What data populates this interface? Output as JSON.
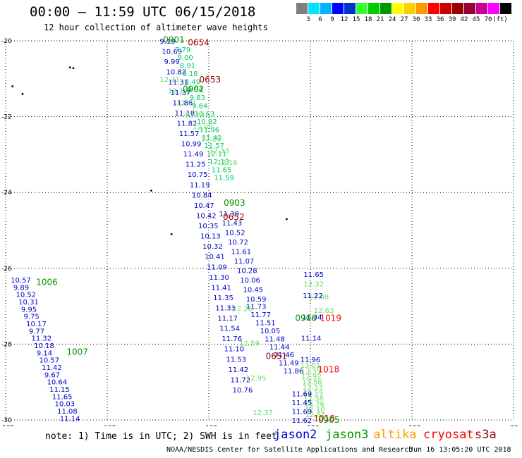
{
  "title": "00:00 – 11:59 UTC 06/15/2018",
  "subtitle": "12 hour collection of altimeter wave heights",
  "scale": {
    "colors": [
      "#7f7f7f",
      "#00e5ff",
      "#00b4ff",
      "#0000ff",
      "#0033cc",
      "#33ff33",
      "#00cc00",
      "#009900",
      "#ffff00",
      "#ffcc00",
      "#ff9900",
      "#ff0000",
      "#cc0000",
      "#990000",
      "#990033",
      "#cc0099",
      "#ff00ff",
      "#000000"
    ],
    "labels": [
      "3",
      "6",
      "9",
      "12",
      "15",
      "18",
      "21",
      "24",
      "27",
      "30",
      "33",
      "36",
      "39",
      "42",
      "45",
      "70",
      "(ft)"
    ]
  },
  "axes": {
    "lat_labels": [
      "-20",
      "-22",
      "-24",
      "-26",
      "-28",
      "-30"
    ],
    "lon_labels": [
      "-135",
      "-132",
      "-129",
      "-126",
      "-123",
      "-12"
    ]
  },
  "satellites": {
    "jason2": "#0000cc",
    "jason3": "#009900",
    "altika": "#ff9900",
    "cryosat": "#ff0000",
    "s3a": "#990000"
  },
  "time_labels": [
    {
      "text": "0901",
      "sat": "jason3",
      "lon": -130.35,
      "lat": -19.95
    },
    {
      "text": "0654",
      "sat": "s3a",
      "lon": -129.62,
      "lat": -20.03
    },
    {
      "text": "0653",
      "sat": "s3a",
      "lon": -129.28,
      "lat": -21.0
    },
    {
      "text": "0902",
      "sat": "jason3",
      "lon": -129.77,
      "lat": -21.25
    },
    {
      "text": "0903",
      "sat": "jason3",
      "lon": -128.56,
      "lat": -24.26
    },
    {
      "text": "0652",
      "sat": "s3a",
      "lon": -128.58,
      "lat": -24.63
    },
    {
      "text": "1006",
      "sat": "jason3",
      "lon": -134.1,
      "lat": -26.35
    },
    {
      "text": "0906",
      "sat": "jason3",
      "lon": -126.45,
      "lat": -27.3
    },
    {
      "text": "1019",
      "sat": "cryosat",
      "lon": -125.72,
      "lat": -27.3
    },
    {
      "text": "1007",
      "sat": "jason3",
      "lon": -133.2,
      "lat": -28.19
    },
    {
      "text": "0651",
      "sat": "s3a",
      "lon": -127.32,
      "lat": -28.3
    },
    {
      "text": "1018",
      "sat": "cryosat",
      "lon": -125.78,
      "lat": -28.65
    },
    {
      "text": "1018",
      "sat": "cryosat",
      "lon": -125.91,
      "lat": -29.94
    },
    {
      "text": "0905",
      "sat": "jason3",
      "lon": -125.77,
      "lat": -29.98
    }
  ],
  "tracks": [
    {
      "sat": "jason2",
      "color": "#0000cc",
      "lon0": -130.45,
      "lon1": -128.3,
      "lat0": -20.0,
      "lat1": -29.2,
      "values": [
        "9.19",
        "10.69",
        "9.99",
        "10.82",
        "11.31",
        "11.37",
        "11.86",
        "11.18",
        "11.82",
        "11.57",
        "10.99",
        "11.49",
        "11.25",
        "10.75",
        "11.19",
        "10.84",
        "10.47",
        "10.42",
        "10.35",
        "10.13",
        "10.32",
        "10.41",
        "11.09",
        "11.30",
        "11.41",
        "11.35",
        "11.33",
        "11.17",
        "11.54",
        "11.76",
        "11.10",
        "11.53",
        "11.42",
        "11.72",
        "10.76"
      ]
    },
    {
      "sat": "jason3",
      "color": "#00cc66",
      "lon0": -130.0,
      "lon1": -128.85,
      "lat0": -20.22,
      "lat1": -23.6,
      "values": [
        "7.79",
        "9.00",
        "8.91",
        "9.18",
        "8.49",
        "8.64",
        "9.83",
        "9.64",
        "10.63",
        "10.92",
        "11.96",
        "11.42",
        "11.57",
        "12.11",
        "12.13",
        "11.65",
        "11.59"
      ]
    },
    {
      "sat": "jason3b",
      "color": "#66dd66",
      "lon0": -130.45,
      "lon1": -128.75,
      "lat0": -21.0,
      "lat1": -23.2,
      "values": [
        "12.11",
        "12.10",
        "12.11",
        "12.13",
        "12.00",
        "12.29",
        "12.33",
        "12.16"
      ]
    },
    {
      "sat": "s3a_mid",
      "color": "#0000cc",
      "lon0": -128.7,
      "lon1": -127.9,
      "lat0": -24.55,
      "lat1": -26.8,
      "values": [
        "11.39",
        "11.43",
        "10.52",
        "10.72",
        "11.61",
        "11.07",
        "10.28",
        "10.06",
        "10.45",
        "10.59"
      ]
    },
    {
      "sat": "s3a_low",
      "color": "#0000cc",
      "lon0": -127.9,
      "lon1": -126.8,
      "lat0": -27.0,
      "lat1": -28.7,
      "values": [
        "11.73",
        "11.77",
        "11.51",
        "10.05",
        "11.48",
        "11.44",
        "11.46",
        "11.49",
        "11.86"
      ]
    },
    {
      "sat": "jason3_low",
      "color": "#66dd66",
      "lon0": -128.3,
      "lon1": -127.7,
      "lat0": -27.05,
      "lat1": -29.8,
      "values": [
        "12.26",
        "12.59",
        "12.95",
        "12.37"
      ]
    },
    {
      "sat": "cryo_col",
      "color": "#66dd66",
      "lon0": -126.2,
      "lon1": -125.9,
      "lat0": -26.4,
      "lat1": -27.1,
      "values": [
        "12.32",
        "12.08",
        "12.63"
      ]
    },
    {
      "sat": "cryo_col2",
      "color": "#0000cc",
      "lon0": -126.2,
      "lon1": -126.3,
      "lat0": -26.15,
      "lat1": -28.4,
      "values": [
        "11.65",
        "11.22",
        "11.34",
        "11.14",
        "11.96"
      ]
    },
    {
      "sat": "cryo_low",
      "color": "#66dd66",
      "lon0": -126.3,
      "lon1": -126.15,
      "lat0": -28.55,
      "lat1": -29.85,
      "values": [
        "13.01",
        "13.35",
        "12.92",
        "13.58",
        "13.33",
        "12.59",
        "12.56",
        "13.76",
        "12.10",
        "12.85"
      ]
    },
    {
      "sat": "cryo_low2",
      "color": "#0000cc",
      "lon0": -126.55,
      "lon1": -126.55,
      "lat0": -29.3,
      "lat1": -30.0,
      "values": [
        "11.69",
        "11.45",
        "11.69",
        "11.62"
      ]
    },
    {
      "sat": "jason3_left",
      "color": "#0000cc",
      "lon0": -134.85,
      "lon1": -133.4,
      "lat0": -26.3,
      "lat1": -29.95,
      "values": [
        "10.57",
        "9.89",
        "10.52",
        "10.31",
        "9.95",
        "9.75",
        "10.17",
        "9.77",
        "11.32",
        "10.18",
        "9.14",
        "10.57",
        "11.42",
        "9.67",
        "10.64",
        "11.15",
        "11.65",
        "10.03",
        "11.08",
        "11.14"
      ]
    }
  ],
  "note": "note: 1) Time is in UTC; 2) SWH is in feet",
  "sat_labels": [
    "jason2",
    "jason3",
    "altika",
    "cryosat",
    "s3a"
  ],
  "credit": "NOAA/NESDIS Center for Satellite Applications and Research",
  "stamp": "Jun 16 13:05:20 UTC 2018"
}
